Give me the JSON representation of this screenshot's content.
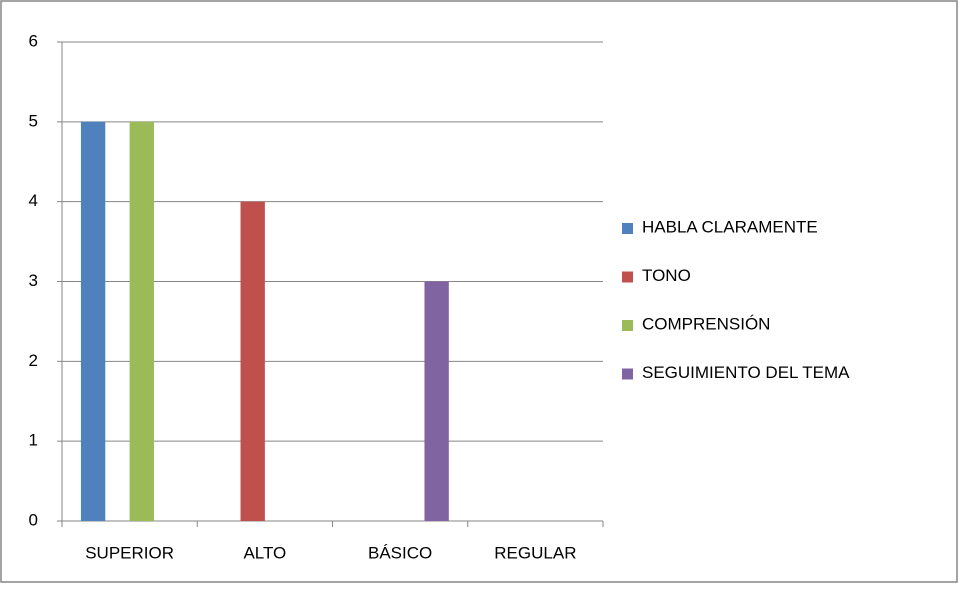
{
  "chart_data": {
    "type": "bar",
    "categories": [
      "SUPERIOR",
      "ALTO",
      "BÁSICO",
      "REGULAR"
    ],
    "series": [
      {
        "name": "HABLA CLARAMENTE",
        "color": "#4f81bd",
        "values": [
          5,
          0,
          0,
          0
        ]
      },
      {
        "name": "TONO",
        "color": "#c0504d",
        "values": [
          0,
          4,
          0,
          0
        ]
      },
      {
        "name": "COMPRENSIÓN",
        "color": "#9bbb59",
        "values": [
          5,
          0,
          0,
          0
        ]
      },
      {
        "name": "SEGUIMIENTO DEL TEMA",
        "color": "#8064a2",
        "values": [
          0,
          0,
          3,
          0
        ]
      }
    ],
    "ylim": [
      0,
      6
    ],
    "yticks": [
      0,
      1,
      2,
      3,
      4,
      5,
      6
    ],
    "grid": true,
    "legend": "right"
  }
}
